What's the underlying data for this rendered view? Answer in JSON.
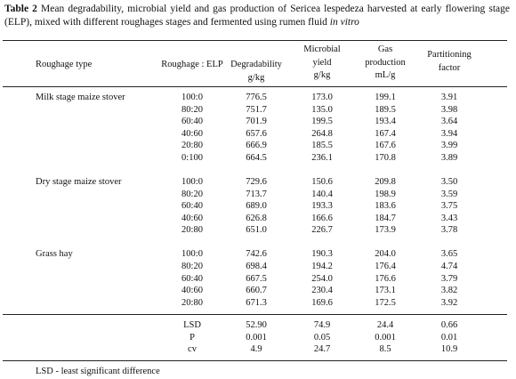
{
  "title": {
    "label": "Table 2",
    "text": "Mean degradability, microbial yield and gas production of Sericea lespedeza harvested at early flowering stage (ELP), mixed with different roughages stages and fermented using rumen fluid",
    "italic": "in vitro"
  },
  "table": {
    "columns": [
      {
        "lines": [
          "Roughage type"
        ]
      },
      {
        "lines": [
          "Roughage : ELP"
        ]
      },
      {
        "lines": [
          "Degradability",
          "g/kg"
        ]
      },
      {
        "lines": [
          "Microbial",
          "yield",
          "g/kg"
        ]
      },
      {
        "lines": [
          "Gas",
          "production",
          "mL/g"
        ]
      },
      {
        "lines": [
          "Partitioning",
          "factor"
        ]
      }
    ],
    "groups": [
      {
        "name": "Milk stage maize stover",
        "rows": [
          [
            "100:0",
            "776.5",
            "173.0",
            "199.1",
            "3.91"
          ],
          [
            "80:20",
            "751.7",
            "135.0",
            "189.5",
            "3.98"
          ],
          [
            "60:40",
            "701.9",
            "199.5",
            "193.4",
            "3.64"
          ],
          [
            "40:60",
            "657.6",
            "264.8",
            "167.4",
            "3.94"
          ],
          [
            "20:80",
            "666.9",
            "185.5",
            "167.6",
            "3.99"
          ],
          [
            "0:100",
            "664.5",
            "236.1",
            "170.8",
            "3.89"
          ]
        ]
      },
      {
        "name": "Dry stage maize stover",
        "rows": [
          [
            "100:0",
            "729.6",
            "150.6",
            "209.8",
            "3.50"
          ],
          [
            "80:20",
            "713.7",
            "140.4",
            "198.9",
            "3.59"
          ],
          [
            "60:40",
            "689.0",
            "193.3",
            "183.6",
            "3.75"
          ],
          [
            "40:60",
            "626.8",
            "166.6",
            "184.7",
            "3.43"
          ],
          [
            "20:80",
            "651.0",
            "226.7",
            "173.9",
            "3.78"
          ]
        ]
      },
      {
        "name": "Grass hay",
        "rows": [
          [
            "100:0",
            "742.6",
            "190.3",
            "204.0",
            "3.65"
          ],
          [
            "80:20",
            "698.4",
            "194.2",
            "176.4",
            "4.74"
          ],
          [
            "60:40",
            "667.5",
            "254.0",
            "176.6",
            "3.79"
          ],
          [
            "40:60",
            "660.7",
            "230.4",
            "173.1",
            "3.82"
          ],
          [
            "20:80",
            "671.3",
            "169.6",
            "172.5",
            "3.92"
          ]
        ]
      }
    ],
    "stats": [
      [
        "LSD",
        "52.90",
        "74.9",
        "24.4",
        "0.66"
      ],
      [
        "P",
        "0.001",
        "0.05",
        "0.001",
        "0.01"
      ],
      [
        "cv",
        "4.9",
        "24.7",
        "8.5",
        "10.9"
      ]
    ]
  },
  "footnote": "LSD - least significant difference"
}
